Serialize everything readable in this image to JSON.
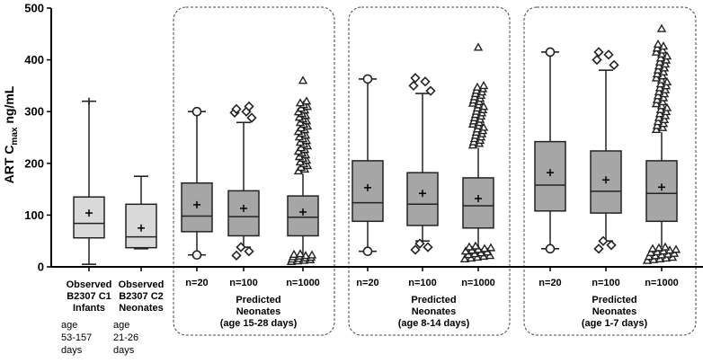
{
  "chart_data": {
    "type": "box",
    "title": "",
    "ylabel": "ART C",
    "ylabel_sub": "max",
    "ylabel_unit": " ng/mL",
    "ylim": [
      0,
      500
    ],
    "yticks": [
      0,
      100,
      200,
      300,
      400,
      500
    ],
    "colors": {
      "observed_box": "#d9d9d9",
      "predicted_box": "#a6a6a6",
      "stroke": "#222222"
    },
    "boxes": [
      {
        "id": "obs-c1",
        "label": [
          "Observed",
          "B2307 C1",
          "Infants"
        ],
        "note": [
          "age",
          "53-157",
          "days"
        ],
        "fill": "observed",
        "whisker_low": 5,
        "q1": 56,
        "median": 84,
        "q3": 135,
        "whisker_high": 320,
        "mean": 104,
        "cap": "plus",
        "outlier_marker": "none",
        "outliers": []
      },
      {
        "id": "obs-c2",
        "label": [
          "Observed",
          "B2307 C2",
          "Neonates"
        ],
        "note": [
          "age",
          "21-26",
          "days"
        ],
        "fill": "observed",
        "whisker_low": 35,
        "q1": 37,
        "median": 58,
        "q3": 121,
        "whisker_high": 175,
        "mean": 75,
        "cap": "line",
        "outlier_marker": "none",
        "outliers": []
      },
      {
        "id": "p1-n20",
        "label": [
          "n=20"
        ],
        "fill": "predicted",
        "whisker_low": 23,
        "q1": 68,
        "median": 98,
        "q3": 162,
        "whisker_high": 300,
        "mean": 120,
        "cap": "circle",
        "outlier_marker": "none",
        "outliers": []
      },
      {
        "id": "p1-n100",
        "label": [
          "n=100"
        ],
        "fill": "predicted",
        "whisker_low": 38,
        "q1": 60,
        "median": 97,
        "q3": 147,
        "whisker_high": 279,
        "mean": 113,
        "cap": "line",
        "outlier_marker": "diamond",
        "outliers": [
          22,
          30,
          38,
          288,
          298,
          300,
          305,
          310
        ]
      },
      {
        "id": "p1-n1000",
        "label": [
          "n=1000"
        ],
        "fill": "predicted",
        "whisker_low": 25,
        "q1": 60,
        "median": 96,
        "q3": 137,
        "whisker_high": 180,
        "mean": 106,
        "cap": "none",
        "outlier_marker": "triangle",
        "outlier_bands": [
          {
            "from": 10,
            "to": 25,
            "count": 14,
            "spread": 13
          },
          {
            "from": 185,
            "to": 320,
            "count": 40,
            "spread": 5
          }
        ],
        "outliers": [
          360
        ]
      },
      {
        "id": "p2-n20",
        "label": [
          "n=20"
        ],
        "fill": "predicted",
        "whisker_low": 30,
        "q1": 88,
        "median": 124,
        "q3": 205,
        "whisker_high": 363,
        "mean": 153,
        "cap": "circle",
        "outlier_marker": "none",
        "outliers": []
      },
      {
        "id": "p2-n100",
        "label": [
          "n=100"
        ],
        "fill": "predicted",
        "whisker_low": 50,
        "q1": 80,
        "median": 121,
        "q3": 182,
        "whisker_high": 335,
        "mean": 142,
        "cap": "line",
        "outlier_marker": "diamond",
        "outliers": [
          33,
          38,
          45,
          340,
          350,
          358,
          365
        ]
      },
      {
        "id": "p2-n1000",
        "label": [
          "n=1000"
        ],
        "fill": "predicted",
        "whisker_low": 40,
        "q1": 75,
        "median": 118,
        "q3": 172,
        "whisker_high": 230,
        "mean": 132,
        "cap": "none",
        "outlier_marker": "triangle",
        "outlier_bands": [
          {
            "from": 15,
            "to": 40,
            "count": 16,
            "spread": 15
          },
          {
            "from": 235,
            "to": 350,
            "count": 38,
            "spread": 6
          }
        ],
        "outliers": [
          424
        ]
      },
      {
        "id": "p3-n20",
        "label": [
          "n=20"
        ],
        "fill": "predicted",
        "whisker_low": 35,
        "q1": 108,
        "median": 158,
        "q3": 242,
        "whisker_high": 415,
        "mean": 182,
        "cap": "circle",
        "outlier_marker": "none",
        "outliers": []
      },
      {
        "id": "p3-n100",
        "label": [
          "n=100"
        ],
        "fill": "predicted",
        "whisker_low": 50,
        "q1": 104,
        "median": 146,
        "q3": 224,
        "whisker_high": 380,
        "mean": 168,
        "cap": "line",
        "outlier_marker": "diamond",
        "outliers": [
          35,
          42,
          50,
          390,
          400,
          410,
          415
        ]
      },
      {
        "id": "p3-n1000",
        "label": [
          "n=1000"
        ],
        "fill": "predicted",
        "whisker_low": 38,
        "q1": 88,
        "median": 142,
        "q3": 205,
        "whisker_high": 260,
        "mean": 154,
        "cap": "none",
        "outlier_marker": "triangle",
        "outlier_bands": [
          {
            "from": 12,
            "to": 38,
            "count": 18,
            "spread": 16
          },
          {
            "from": 265,
            "to": 430,
            "count": 44,
            "spread": 6
          }
        ],
        "outliers": [
          460
        ]
      }
    ],
    "groups": [
      {
        "id": "group-15-28",
        "label": [
          "Predicted",
          "Neonates",
          "(age 15-28 days)"
        ],
        "boxes": [
          "p1-n20",
          "p1-n100",
          "p1-n1000"
        ]
      },
      {
        "id": "group-8-14",
        "label": [
          "Predicted",
          "Neonates",
          "(age 8-14 days)"
        ],
        "boxes": [
          "p2-n20",
          "p2-n100",
          "p2-n1000"
        ]
      },
      {
        "id": "group-1-7",
        "label": [
          "Predicted",
          "Neonates",
          "(age 1-7 days)"
        ],
        "boxes": [
          "p3-n20",
          "p3-n100",
          "p3-n1000"
        ]
      }
    ]
  }
}
